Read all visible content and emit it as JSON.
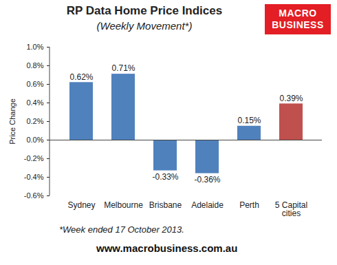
{
  "chart_data": {
    "type": "bar",
    "title": "RP Data Home Price Indices",
    "subtitle": "(Weekly Movement*)",
    "y_label": "Price Change",
    "annotations": [
      "MACRO",
      "BUSINESS",
      "*Week ended 17 October 2013.",
      "www.macrobusiness.com.au"
    ],
    "categories": [
      "Sydney",
      "Melbourne",
      "Brisbane",
      "Adelaide",
      "Perth",
      "5 Capital cities"
    ],
    "values": [
      0.62,
      0.71,
      -0.33,
      -0.36,
      0.15,
      0.39
    ],
    "value_labels": [
      "0.62%",
      "0.71%",
      "-0.33%",
      "-0.36%",
      "0.15%",
      "0.39%"
    ],
    "colors": [
      "#4f81bd",
      "#4f81bd",
      "#4f81bd",
      "#4f81bd",
      "#4f81bd",
      "#c0504d"
    ],
    "ylim": [
      -0.6,
      1.0
    ],
    "yticks": [
      {
        "value": -0.6,
        "label": "-0.6%"
      },
      {
        "value": -0.4,
        "label": "-0.4%"
      },
      {
        "value": -0.2,
        "label": "-0.2%"
      },
      {
        "value": 0,
        "label": "0.0%"
      },
      {
        "value": 0.2,
        "label": "0.2%"
      },
      {
        "value": 0.4,
        "label": "0.4%"
      },
      {
        "value": 0.6,
        "label": "0.6%"
      },
      {
        "value": 0.8,
        "label": "0.8%"
      },
      {
        "value": 1.0,
        "label": "1.0%"
      }
    ],
    "grid": false,
    "data_labels": true
  }
}
